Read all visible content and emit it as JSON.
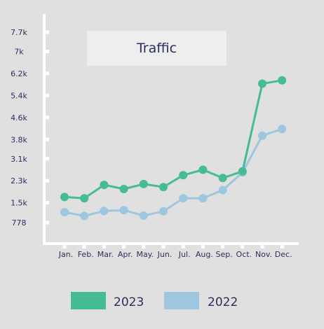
{
  "chart_data": {
    "type": "line",
    "title": "Traffic",
    "categories": [
      "Jan.",
      "Feb.",
      "Mar.",
      "Apr.",
      "May.",
      "Jun.",
      "Jul.",
      "Aug.",
      "Sep.",
      "Oct.",
      "Nov.",
      "Dec."
    ],
    "yticks": [
      {
        "value": 778,
        "label": "778"
      },
      {
        "value": 1500,
        "label": "1.5k"
      },
      {
        "value": 2300,
        "label": "2.3k"
      },
      {
        "value": 3100,
        "label": "3.1k"
      },
      {
        "value": 3800,
        "label": "3.8k"
      },
      {
        "value": 4600,
        "label": "4.6k"
      },
      {
        "value": 5400,
        "label": "5.4k"
      },
      {
        "value": 6200,
        "label": "6.2k"
      },
      {
        "value": 7000,
        "label": "7k"
      },
      {
        "value": 7700,
        "label": "7.7k"
      }
    ],
    "ylim": [
      0,
      8000
    ],
    "series": [
      {
        "name": "2023",
        "color": "#45bc94",
        "values": [
          1710,
          1660,
          2150,
          2000,
          2180,
          2070,
          2500,
          2700,
          2400,
          2640,
          5830,
          5950
        ]
      },
      {
        "name": "2022",
        "color": "#9ec6df",
        "values": [
          1160,
          1020,
          1200,
          1230,
          1030,
          1190,
          1660,
          1660,
          1960,
          2600,
          3940,
          4180
        ]
      }
    ],
    "grid": false,
    "legend_position": "bottom",
    "background": "#e0e0e0",
    "axis_color": "#ffffff",
    "text_color": "#2a2f5b",
    "title_box_color": "#eeeeee"
  }
}
